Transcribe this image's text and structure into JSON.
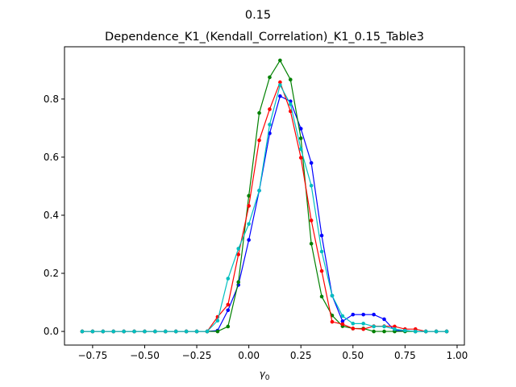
{
  "chart_data": {
    "type": "line",
    "suptitle": "0.15",
    "title": "Dependence_K1_(Kendall_Correlation)_K1_0.15_Table3",
    "xlabel": "γ",
    "xlabel_sub": "0",
    "ylabel": "",
    "xlim": [
      -0.885,
      1.035
    ],
    "ylim": [
      -0.047,
      0.98
    ],
    "xticks": [
      -0.75,
      -0.5,
      -0.25,
      0.0,
      0.25,
      0.5,
      0.75,
      1.0
    ],
    "xtick_labels": [
      "−0.75",
      "−0.50",
      "−0.25",
      "0.00",
      "0.25",
      "0.50",
      "0.75",
      "1.00"
    ],
    "yticks": [
      0.0,
      0.2,
      0.4,
      0.6,
      0.8
    ],
    "ytick_labels": [
      "0.0",
      "0.2",
      "0.4",
      "0.6",
      "0.8"
    ],
    "grid": false,
    "x": [
      -0.8,
      -0.75,
      -0.7,
      -0.65,
      -0.6,
      -0.55,
      -0.5,
      -0.45,
      -0.4,
      -0.35,
      -0.3,
      -0.25,
      -0.2,
      -0.15,
      -0.1,
      -0.05,
      0.0,
      0.05,
      0.1,
      0.15,
      0.2,
      0.25,
      0.3,
      0.35,
      0.4,
      0.45,
      0.5,
      0.55,
      0.6,
      0.65,
      0.7,
      0.75,
      0.8,
      0.85,
      0.9,
      0.95
    ],
    "series": [
      {
        "color": "#0000ff",
        "values": [
          0,
          0,
          0,
          0,
          0,
          0,
          0,
          0,
          0,
          0,
          0,
          0,
          0,
          0.003,
          0.073,
          0.16,
          0.315,
          0.485,
          0.682,
          0.81,
          0.792,
          0.698,
          0.58,
          0.33,
          0.123,
          0.035,
          0.058,
          0.058,
          0.058,
          0.042,
          0.003,
          0.003,
          0,
          0,
          0,
          0
        ]
      },
      {
        "color": "#008000",
        "values": [
          0,
          0,
          0,
          0,
          0,
          0,
          0,
          0,
          0,
          0,
          0,
          0,
          0,
          0,
          0.017,
          0.17,
          0.467,
          0.752,
          0.875,
          0.933,
          0.867,
          0.665,
          0.302,
          0.12,
          0.055,
          0.018,
          0.01,
          0.01,
          0,
          0,
          0,
          0,
          0,
          0,
          0,
          0
        ]
      },
      {
        "color": "#ff0000",
        "values": [
          0,
          0,
          0,
          0,
          0,
          0,
          0,
          0,
          0,
          0,
          0,
          0,
          0,
          0.05,
          0.092,
          0.265,
          0.432,
          0.658,
          0.765,
          0.858,
          0.758,
          0.598,
          0.382,
          0.208,
          0.033,
          0.025,
          0.01,
          0.008,
          0.018,
          0.018,
          0.017,
          0.008,
          0.008,
          0,
          0,
          0
        ]
      },
      {
        "color": "#00bfbf",
        "values": [
          0,
          0,
          0,
          0,
          0,
          0,
          0,
          0,
          0,
          0,
          0,
          0,
          0,
          0.037,
          0.182,
          0.285,
          0.37,
          0.485,
          0.712,
          0.848,
          0.782,
          0.628,
          0.502,
          0.275,
          0.123,
          0.053,
          0.027,
          0.027,
          0.017,
          0.017,
          0.008,
          0.003,
          0,
          0,
          0,
          0
        ]
      }
    ]
  }
}
